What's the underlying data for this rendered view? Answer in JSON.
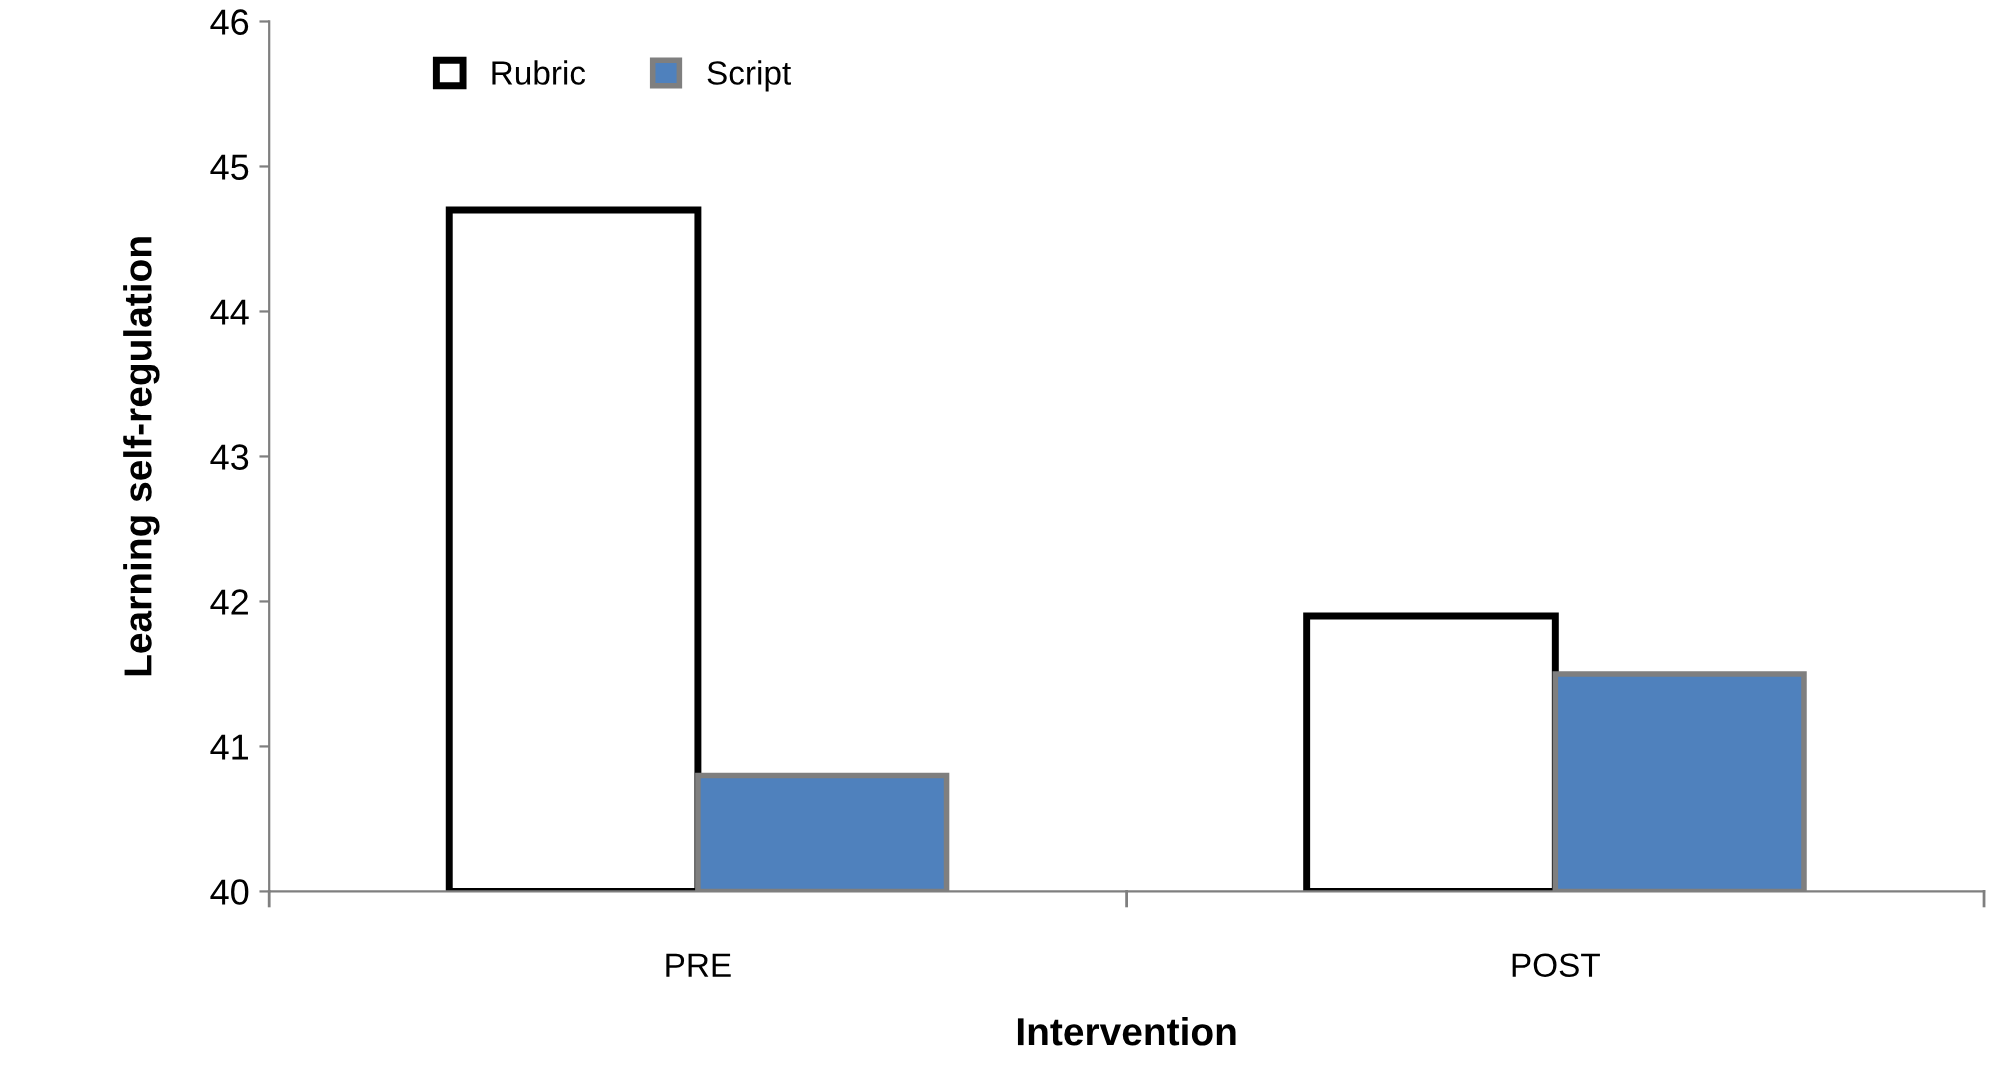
{
  "chart_data": {
    "type": "bar",
    "xlabel": "Intervention",
    "ylabel": "Learning self-regulation",
    "categories": [
      "PRE",
      "POST"
    ],
    "series": [
      {
        "name": "Rubric",
        "color": "#ffffff",
        "values": [
          44.7,
          41.9
        ]
      },
      {
        "name": "Script",
        "color": "#4f81bd",
        "values": [
          40.8,
          41.5
        ]
      }
    ],
    "ylim": [
      40,
      46
    ],
    "yticks": [
      40,
      41,
      42,
      43,
      44,
      45,
      46
    ],
    "grid": false,
    "legend": "top left"
  }
}
